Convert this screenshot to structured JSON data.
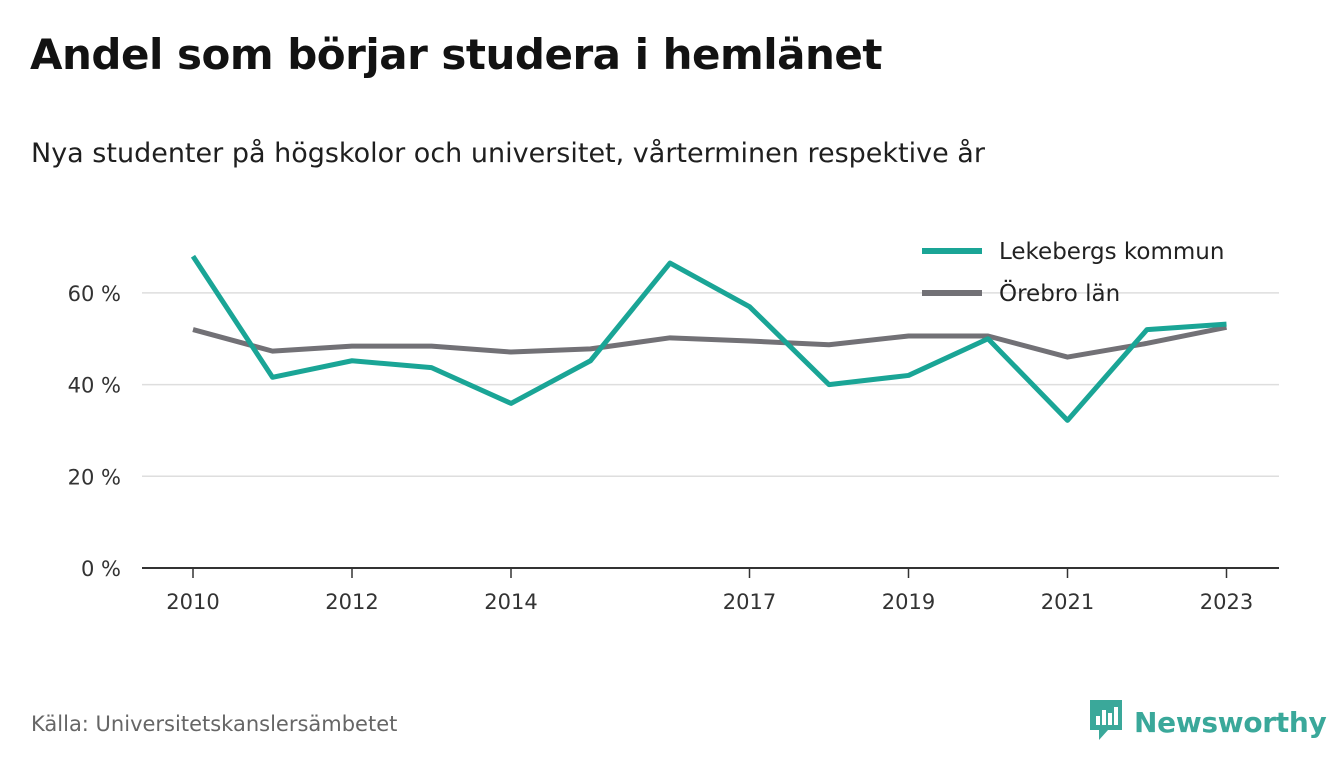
{
  "title": "Andel som börjar studera i hemlänet",
  "subtitle": "Nya studenter på högskolor och universitet, vårterminen respektive år",
  "source": "Källa: Universitetskanslersämbetet",
  "brand": {
    "name": "Newsworthy",
    "icon": "newsworthy-logo-icon",
    "color": "#3aa89a"
  },
  "chart_data": {
    "type": "line",
    "x": [
      2010,
      2011,
      2012,
      2013,
      2014,
      2015,
      2016,
      2017,
      2018,
      2019,
      2020,
      2021,
      2022,
      2023
    ],
    "x_tick_labels": [
      "2010",
      "2012",
      "2014",
      "2017",
      "2019",
      "2021",
      "2023"
    ],
    "x_ticks": [
      2010,
      2012,
      2014,
      2017,
      2019,
      2021,
      2023
    ],
    "y_tick_labels": [
      "0 %",
      "20 %",
      "40 %",
      "60 %"
    ],
    "y_ticks": [
      0,
      20,
      40,
      60
    ],
    "ylim": [
      0,
      70
    ],
    "grid": "horizontal",
    "legend_position": "top-right",
    "series": [
      {
        "name": "Lekebergs kommun",
        "color": "#1aa596",
        "values": [
          68.0,
          41.6,
          45.2,
          43.7,
          35.9,
          45.2,
          66.5,
          57.0,
          40.0,
          42.0,
          50.0,
          32.2,
          52.0,
          53.2
        ]
      },
      {
        "name": "Örebro län",
        "color": "#727176",
        "values": [
          52.0,
          47.3,
          48.4,
          48.4,
          47.1,
          47.8,
          50.2,
          49.5,
          48.7,
          50.6,
          50.6,
          46.0,
          49.0,
          52.5
        ]
      }
    ]
  }
}
